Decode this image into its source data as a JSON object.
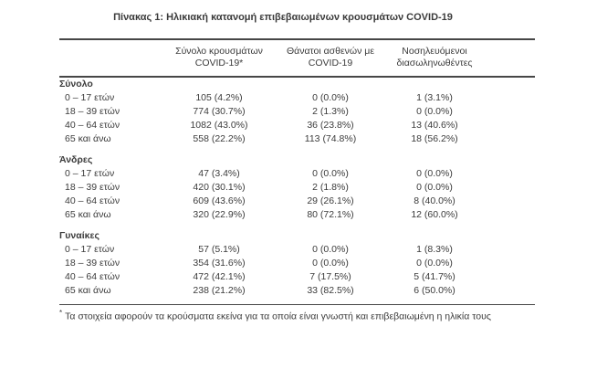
{
  "title": "Πίνακας 1: Ηλικιακή κατανομή επιβεβαιωμένων κρουσμάτων COVID-19",
  "table": {
    "columns": [
      {
        "line1": "Σύνολο κρουσμάτων",
        "line2": "COVID-19*"
      },
      {
        "line1": "Θάνατοι ασθενών με",
        "line2": "COVID-19"
      },
      {
        "line1": "Νοσηλευόμενοι",
        "line2": "διασωληνωθέντες"
      }
    ],
    "sections": [
      {
        "name": "Σύνολο",
        "rows": [
          {
            "label": "0 – 17 ετών",
            "cases": "105 (4.2%)",
            "deaths": "0 (0.0%)",
            "intubated": "1 (3.1%)"
          },
          {
            "label": "18 – 39 ετών",
            "cases": "774 (30.7%)",
            "deaths": "2 (1.3%)",
            "intubated": "0 (0.0%)"
          },
          {
            "label": "40 – 64 ετών",
            "cases": "1082 (43.0%)",
            "deaths": "36 (23.8%)",
            "intubated": "13 (40.6%)"
          },
          {
            "label": "65 και άνω",
            "cases": "558 (22.2%)",
            "deaths": "113 (74.8%)",
            "intubated": "18 (56.2%)"
          }
        ]
      },
      {
        "name": "Άνδρες",
        "rows": [
          {
            "label": "0 – 17 ετών",
            "cases": "47 (3.4%)",
            "deaths": "0 (0.0%)",
            "intubated": "0 (0.0%)"
          },
          {
            "label": "18 – 39 ετών",
            "cases": "420 (30.1%)",
            "deaths": "2 (1.8%)",
            "intubated": "0 (0.0%)"
          },
          {
            "label": "40 – 64 ετών",
            "cases": "609 (43.6%)",
            "deaths": "29 (26.1%)",
            "intubated": "8 (40.0%)"
          },
          {
            "label": "65 και άνω",
            "cases": "320 (22.9%)",
            "deaths": "80 (72.1%)",
            "intubated": "12 (60.0%)"
          }
        ]
      },
      {
        "name": "Γυναίκες",
        "rows": [
          {
            "label": "0 – 17 ετών",
            "cases": "57 (5.1%)",
            "deaths": "0 (0.0%)",
            "intubated": "1 (8.3%)"
          },
          {
            "label": "18 – 39 ετών",
            "cases": "354 (31.6%)",
            "deaths": "0 (0.0%)",
            "intubated": "0 (0.0%)"
          },
          {
            "label": "40 – 64 ετών",
            "cases": "472 (42.1%)",
            "deaths": "7 (17.5%)",
            "intubated": "5 (41.7%)"
          },
          {
            "label": "65 και άνω",
            "cases": "238 (21.2%)",
            "deaths": "33 (82.5%)",
            "intubated": "6 (50.0%)"
          }
        ]
      }
    ]
  },
  "footnote": {
    "marker": "*",
    "text": "Τα στοιχεία αφορούν τα κρούσματα εκείνα για τα οποία είναι γνωστή και επιβεβαιωμένη η ηλικία τους"
  },
  "colors": {
    "text": "#3b3b3b",
    "rule": "#464646",
    "background": "#ffffff"
  }
}
